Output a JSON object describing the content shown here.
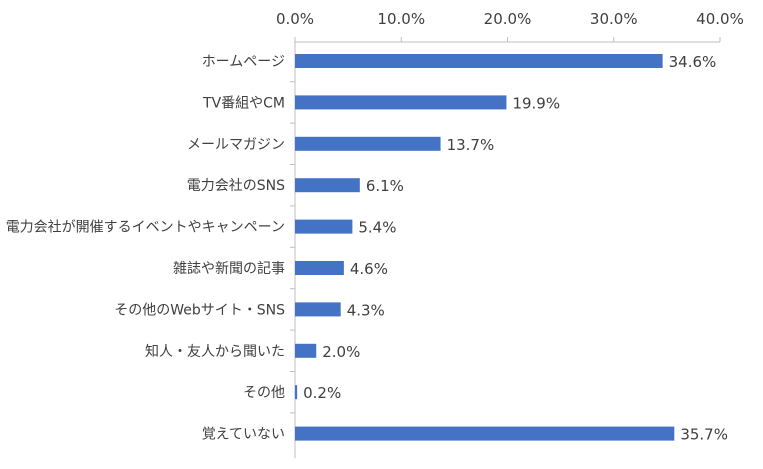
{
  "chart_data": {
    "type": "bar",
    "orientation": "horizontal",
    "categories": [
      "ホームページ",
      "TV番組やCM",
      "メールマガジン",
      "電力会社のSNS",
      "電力会社が開催するイベントやキャンペーン",
      "雑誌や新聞の記事",
      "その他のWebサイト・SNS",
      "知人・友人から聞いた",
      "その他",
      "覚えていない"
    ],
    "values": [
      34.6,
      19.9,
      13.7,
      6.1,
      5.4,
      4.6,
      4.3,
      2.0,
      0.2,
      35.7
    ],
    "value_labels": [
      "34.6%",
      "19.9%",
      "13.7%",
      "6.1%",
      "5.4%",
      "4.6%",
      "4.3%",
      "2.0%",
      "0.2%",
      "35.7%"
    ],
    "x_ticks": [
      0,
      10,
      20,
      30,
      40
    ],
    "x_tick_labels": [
      "0.0%",
      "10.0%",
      "20.0%",
      "30.0%",
      "40.0%"
    ],
    "xlim": [
      0,
      40
    ],
    "x_axis_position": "top",
    "bar_color": "#4472c4",
    "grid": false,
    "legend": "none"
  }
}
